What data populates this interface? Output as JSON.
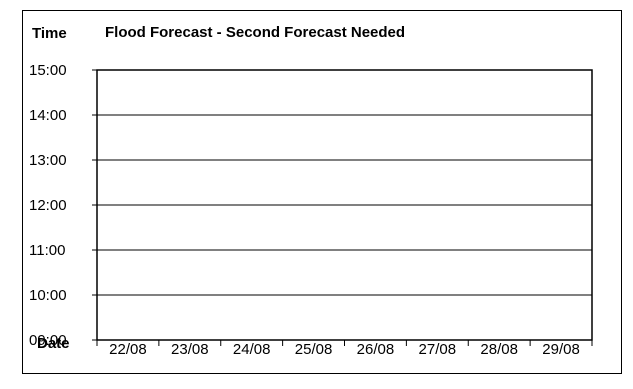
{
  "chart_data": {
    "type": "line",
    "title": "Flood Forecast - Second Forecast Needed",
    "ylabel": "Time",
    "xlabel": "Date",
    "y_ticks": [
      "15:00",
      "14:00",
      "13:00",
      "12:00",
      "11:00",
      "10:00",
      "09:00"
    ],
    "ylim": [
      "09:00",
      "15:00"
    ],
    "categories": [
      "22/08",
      "23/08",
      "24/08",
      "25/08",
      "26/08",
      "27/08",
      "28/08",
      "29/08"
    ],
    "series": [],
    "grid": true,
    "legend": "none"
  },
  "colors": {
    "axis": "#000000",
    "grid": "#000000",
    "background": "#ffffff"
  }
}
